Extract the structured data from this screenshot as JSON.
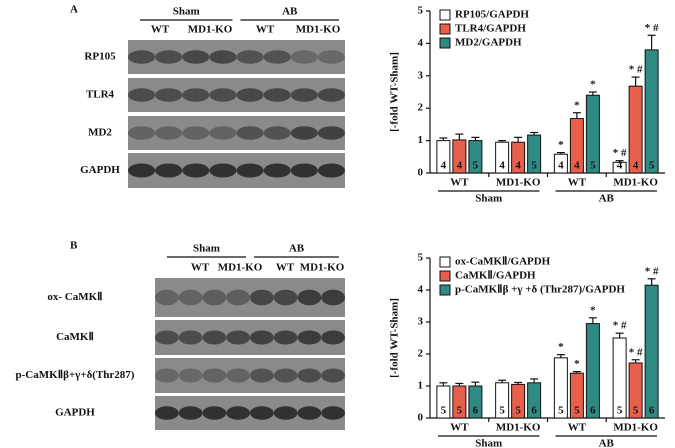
{
  "blots": [
    {
      "panel": "A",
      "groups": [
        "Sham",
        "AB"
      ],
      "lanes": [
        "WT",
        "MD1-KO",
        "WT",
        "MD1-KO"
      ],
      "rows": [
        "RP105",
        "TLR4",
        "MD2",
        "GAPDH"
      ]
    },
    {
      "panel": "B",
      "groups": [
        "Sham",
        "AB"
      ],
      "lanes": [
        "WT",
        "MD1-KO",
        "WT",
        "MD1-KO"
      ],
      "rows": [
        "ox- CaMKⅡ",
        "CaMKⅡ",
        "p-CaMKⅡβ+γ+δ(Thr287)",
        "GAPDH"
      ]
    }
  ],
  "chart_data": [
    {
      "type": "bar",
      "ylabel": "[-fold WT-Sham]",
      "categories": [
        "WT",
        "MD1-KO",
        "WT",
        "MD1-KO"
      ],
      "groups": [
        "Sham",
        "AB"
      ],
      "ylim": [
        0,
        5
      ],
      "yticks": [
        0,
        1,
        2,
        3,
        4,
        5
      ],
      "series": [
        {
          "name": "RP105/GAPDH",
          "color": "#ffffff",
          "values": [
            1.0,
            0.95,
            0.58,
            0.33
          ],
          "errors": [
            0.08,
            0.05,
            0.05,
            0.05
          ],
          "n": [
            4,
            4,
            4,
            4
          ],
          "annotations": [
            null,
            null,
            "*",
            "* #"
          ]
        },
        {
          "name": "TLR4/GAPDH",
          "color": "#e8604c",
          "values": [
            1.02,
            0.95,
            1.68,
            2.68
          ],
          "errors": [
            0.18,
            0.15,
            0.18,
            0.28
          ],
          "n": [
            4,
            4,
            4,
            4
          ],
          "annotations": [
            null,
            null,
            "*",
            "* #"
          ]
        },
        {
          "name": "MD2/GAPDH",
          "color": "#2e8b84",
          "values": [
            1.0,
            1.17,
            2.4,
            3.8
          ],
          "errors": [
            0.1,
            0.08,
            0.1,
            0.45
          ],
          "n": [
            5,
            5,
            5,
            5
          ],
          "annotations": [
            null,
            null,
            "*",
            "* #"
          ]
        }
      ]
    },
    {
      "type": "bar",
      "ylabel": "[-fold WT-Sham]",
      "categories": [
        "WT",
        "MD1-KO",
        "WT",
        "MD1-KO"
      ],
      "groups": [
        "Sham",
        "AB"
      ],
      "ylim": [
        0,
        5
      ],
      "yticks": [
        0,
        1,
        2,
        3,
        4,
        5
      ],
      "series": [
        {
          "name": "ox-CaMKⅡ/GAPDH",
          "color": "#ffffff",
          "values": [
            1.0,
            1.1,
            1.88,
            2.5
          ],
          "errors": [
            0.1,
            0.08,
            0.1,
            0.15
          ],
          "n": [
            5,
            5,
            5,
            5
          ],
          "annotations": [
            null,
            null,
            "*",
            "* #"
          ]
        },
        {
          "name": "CaMKⅡ/GAPDH",
          "color": "#e8604c",
          "values": [
            1.0,
            1.05,
            1.4,
            1.72
          ],
          "errors": [
            0.08,
            0.06,
            0.05,
            0.1
          ],
          "n": [
            5,
            5,
            5,
            5
          ],
          "annotations": [
            null,
            null,
            "*",
            "* #"
          ]
        },
        {
          "name": "p-CaMKⅡβ +γ +δ (Thr287)/GAPDH",
          "color": "#2e8b84",
          "values": [
            1.0,
            1.1,
            2.95,
            4.15
          ],
          "errors": [
            0.12,
            0.12,
            0.18,
            0.2
          ],
          "n": [
            6,
            6,
            6,
            6
          ],
          "annotations": [
            null,
            null,
            "*",
            "* #"
          ]
        }
      ]
    }
  ]
}
